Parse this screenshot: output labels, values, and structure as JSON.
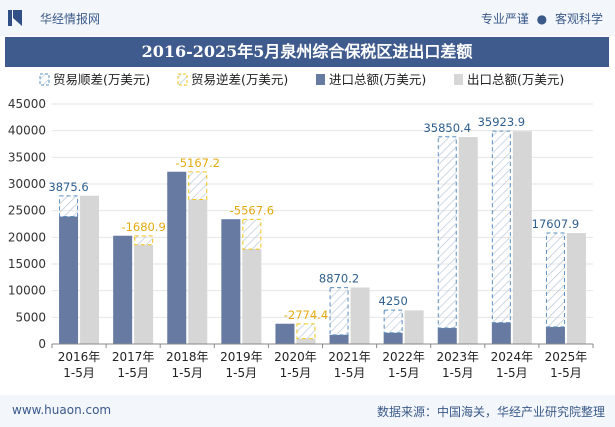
{
  "header": {
    "site_name": "华经情报网",
    "tagline_left": "专业严谨",
    "tagline_sep": "●",
    "tagline_right": "客观科学"
  },
  "footer": {
    "url": "www.huaon.com",
    "source": "数据来源：中国海关，华经产业研究院整理"
  },
  "colors": {
    "import": "#667aa2",
    "export": "#d6d6d6",
    "balance_pos": "#5b8fbf",
    "balance_neg": "#f0c419",
    "label_pos": "#2d5f8e",
    "label_neg": "#e3aa10",
    "title_band": "#3f5a8c"
  },
  "chart_data": {
    "type": "bar",
    "title": "2016-2025年5月泉州综合保税区进出口差额",
    "categories": [
      "2016年\n1-5月",
      "2017年\n1-5月",
      "2018年\n1-5月",
      "2019年\n1-5月",
      "2020年\n1-5月",
      "2021年\n1-5月",
      "2022年\n1-5月",
      "2023年\n1-5月",
      "2024年\n1-5月",
      "2025年\n1-5月"
    ],
    "series": [
      {
        "name": "贸易顺差(万美元)",
        "key": "surplus"
      },
      {
        "name": "贸易逆差(万美元)",
        "key": "deficit"
      },
      {
        "name": "进口总额(万美元)",
        "key": "import",
        "values": [
          23900,
          20300,
          32300,
          23400,
          3800,
          1700,
          2100,
          3000,
          4000,
          3200
        ]
      },
      {
        "name": "出口总额(万美元)",
        "key": "export",
        "values": [
          27800,
          18600,
          27100,
          17800,
          1000,
          10600,
          6300,
          38800,
          39900,
          20800
        ]
      }
    ],
    "balance": [
      3875.6,
      -1680.9,
      -5167.2,
      -5567.6,
      -2774.4,
      8870.2,
      4250,
      35850.4,
      35923.9,
      17607.9
    ],
    "balance_labels": [
      "3875.6",
      "-1680.9",
      "-5167.2",
      "-5567.6",
      "-2774.4",
      "8870.2",
      "4250",
      "35850.4",
      "35923.9",
      "17607.9"
    ],
    "yticks": [
      0,
      5000,
      10000,
      15000,
      20000,
      25000,
      30000,
      35000,
      40000,
      45000
    ],
    "ylim": [
      0,
      45000
    ],
    "legend_position": "top-left",
    "xlabel": "",
    "ylabel": ""
  }
}
